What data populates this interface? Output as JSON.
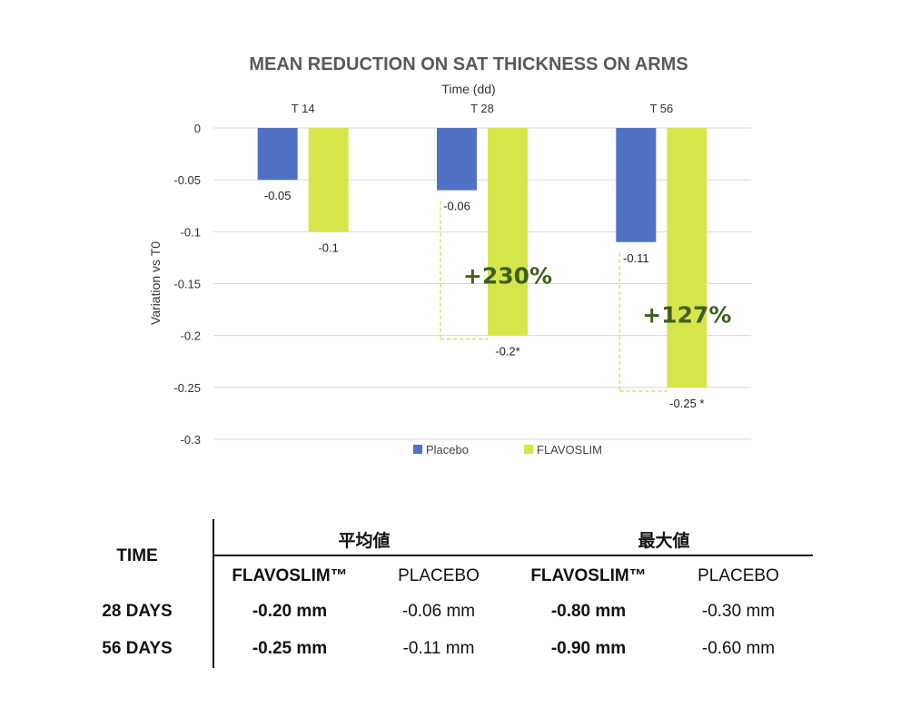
{
  "chart_data": {
    "type": "bar",
    "title": "MEAN REDUCTION ON SAT THICKNESS ON ARMS",
    "xlabel": "Time (dd)",
    "ylabel": "Variation vs T0",
    "categories": [
      "T 14",
      "T 28",
      "T 56"
    ],
    "series": [
      {
        "name": "Placebo",
        "color": "#4f72c4",
        "values": [
          -0.05,
          -0.06,
          -0.11
        ],
        "labels": [
          "-0.05",
          "-0.06",
          "-0.11"
        ]
      },
      {
        "name": "FLAVOSLIM",
        "color": "#d6e64a",
        "values": [
          -0.1,
          -0.2,
          -0.25
        ],
        "labels": [
          "-0.1",
          "-0.2*",
          "-0.25 *"
        ]
      }
    ],
    "ylim": [
      -0.3,
      0
    ],
    "yticks": [
      0,
      -0.05,
      -0.1,
      -0.15,
      -0.2,
      -0.25,
      -0.3
    ],
    "ytick_labels": [
      "0",
      "-0.05",
      "-0.1",
      "-0.15",
      "-0.2",
      "-0.25",
      "-0.3"
    ],
    "grid": true,
    "legend_position": "bottom",
    "annotations": [
      {
        "category": "T 28",
        "text": "+230%",
        "color": "#3f5f1f"
      },
      {
        "category": "T 56",
        "text": "+127%",
        "color": "#3f5f1f"
      }
    ]
  },
  "table": {
    "time_header": "TIME",
    "group_mean": "平均値",
    "group_max": "最大値",
    "col_flavoslim": "FLAVOSLIM™",
    "col_placebo": "PLACEBO",
    "rows": [
      {
        "label": "28 DAYS",
        "mean_flavoslim": "-0.20 mm",
        "mean_placebo": "-0.06 mm",
        "max_flavoslim": "-0.80 mm",
        "max_placebo": "-0.30 mm"
      },
      {
        "label": "56 DAYS",
        "mean_flavoslim": "-0.25 mm",
        "mean_placebo": "-0.11 mm",
        "max_flavoslim": "-0.90 mm",
        "max_placebo": "-0.60 mm"
      }
    ]
  }
}
